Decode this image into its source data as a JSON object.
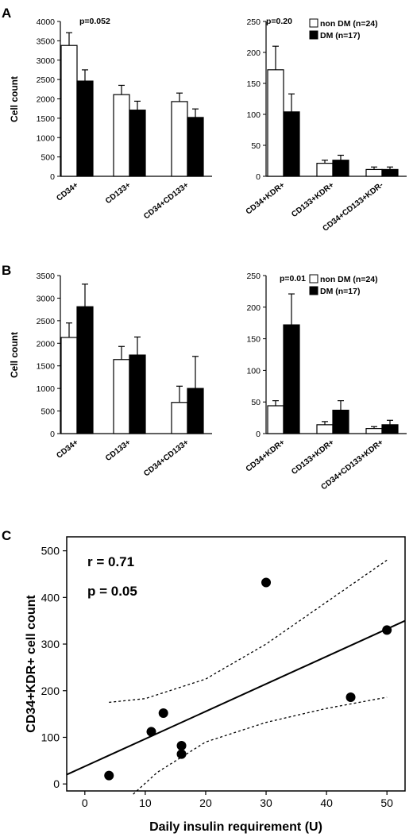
{
  "panels": {
    "A": {
      "label": "A"
    },
    "B": {
      "label": "B"
    },
    "C": {
      "label": "C"
    }
  },
  "legend": {
    "non_dm": "non DM (n=24)",
    "dm": "DM (n=17)"
  },
  "chart_data": [
    {
      "id": "A-left",
      "type": "bar",
      "panel": "A",
      "ylabel": "Cell count",
      "ylim": [
        0,
        4000
      ],
      "yticks": [
        0,
        500,
        1000,
        1500,
        2000,
        2500,
        3000,
        3500,
        4000
      ],
      "categories": [
        "CD34+",
        "CD133+",
        "CD34+CD133+"
      ],
      "series": [
        {
          "name": "non DM (n=24)",
          "values": [
            3380,
            2110,
            1930
          ],
          "errors": [
            330,
            240,
            220
          ]
        },
        {
          "name": "DM (n=17)",
          "values": [
            2460,
            1710,
            1520
          ],
          "errors": [
            290,
            230,
            220
          ]
        }
      ],
      "annotations": [
        "p=0.052"
      ]
    },
    {
      "id": "A-right",
      "type": "bar",
      "panel": "A",
      "ylim": [
        0,
        250
      ],
      "yticks": [
        0,
        50,
        100,
        150,
        200,
        250
      ],
      "categories": [
        "CD34+KDR+",
        "CD133+KDR+",
        "CD34+CD133+KDR-"
      ],
      "series": [
        {
          "name": "non DM (n=24)",
          "values": [
            172,
            21,
            11
          ],
          "errors": [
            38,
            5,
            4
          ]
        },
        {
          "name": "DM (n=17)",
          "values": [
            104,
            26,
            11
          ],
          "errors": [
            29,
            8,
            4
          ]
        }
      ],
      "annotations": [
        "p=0.20"
      ],
      "legend": "top-right"
    },
    {
      "id": "B-left",
      "type": "bar",
      "panel": "B",
      "ylabel": "Cell count",
      "ylim": [
        0,
        3500
      ],
      "yticks": [
        0,
        500,
        1000,
        1500,
        2000,
        2500,
        3000,
        3500
      ],
      "categories": [
        "CD34+",
        "CD133+",
        "CD34+CD133+"
      ],
      "series": [
        {
          "name": "non DM (n=24)",
          "values": [
            2130,
            1640,
            690
          ],
          "errors": [
            320,
            290,
            360
          ]
        },
        {
          "name": "DM (n=17)",
          "values": [
            2810,
            1740,
            1000
          ],
          "errors": [
            500,
            400,
            710
          ]
        }
      ]
    },
    {
      "id": "B-right",
      "type": "bar",
      "panel": "B",
      "ylim": [
        0,
        250
      ],
      "yticks": [
        0,
        50,
        100,
        150,
        200,
        250
      ],
      "categories": [
        "CD34+KDR+",
        "CD133+KDR+",
        "CD34+CD133+KDR+"
      ],
      "series": [
        {
          "name": "non DM (n=24)",
          "values": [
            44,
            14,
            8
          ],
          "errors": [
            8,
            5,
            3
          ]
        },
        {
          "name": "DM (n=17)",
          "values": [
            172,
            37,
            14
          ],
          "errors": [
            49,
            15,
            7
          ]
        }
      ],
      "annotations": [
        "p=0.01"
      ],
      "legend": "top-right"
    },
    {
      "id": "C",
      "type": "scatter",
      "panel": "C",
      "xlabel": "Daily insulin requirement (U)",
      "ylabel": "CD34+KDR+ cell count",
      "xlim": [
        -3,
        53
      ],
      "ylim": [
        -15,
        530
      ],
      "xticks": [
        0,
        10,
        20,
        30,
        40,
        50
      ],
      "yticks": [
        0,
        100,
        200,
        300,
        400,
        500
      ],
      "points": [
        {
          "x": 4,
          "y": 18
        },
        {
          "x": 11,
          "y": 112
        },
        {
          "x": 13,
          "y": 152
        },
        {
          "x": 16,
          "y": 82
        },
        {
          "x": 16,
          "y": 64
        },
        {
          "x": 30,
          "y": 432
        },
        {
          "x": 44,
          "y": 186
        },
        {
          "x": 50,
          "y": 330
        }
      ],
      "regression": {
        "x": [
          -3,
          53
        ],
        "y": [
          20,
          350
        ]
      },
      "ci_upper": {
        "x": [
          4,
          10,
          20,
          30,
          40,
          50
        ],
        "y": [
          175,
          183,
          225,
          300,
          390,
          480
        ]
      },
      "ci_lower": {
        "x": [
          8,
          12,
          20,
          30,
          40,
          50
        ],
        "y": [
          -22,
          25,
          90,
          132,
          162,
          186
        ]
      },
      "annotations": [
        "r = 0.71",
        "p = 0.05"
      ]
    }
  ]
}
